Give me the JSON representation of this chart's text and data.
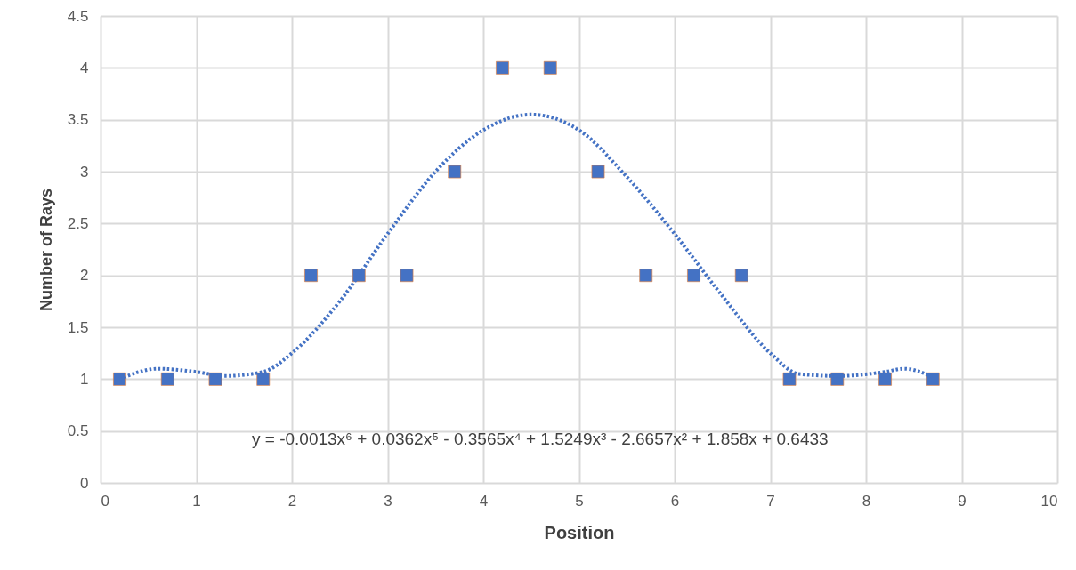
{
  "chart_data": {
    "type": "scatter",
    "xlabel": "Position",
    "ylabel": "Number of Rays",
    "xlim": [
      0,
      10
    ],
    "xticks": [
      0,
      1,
      2,
      3,
      4,
      5,
      6,
      7,
      8,
      9,
      10
    ],
    "ylim": [
      0,
      4.5
    ],
    "yticks": [
      0,
      0.5,
      1,
      1.5,
      2,
      2.5,
      3,
      3.5,
      4,
      4.5
    ],
    "grid": true,
    "marker": "square",
    "annotations": [
      "y = -0.0013x⁶ + 0.0362x⁵ - 0.3565x⁴ + 1.5249x³ - 2.6657x² + 1.858x + 0.6433"
    ],
    "series": [
      {
        "color": "#4472c4",
        "x": [
          0.2,
          0.7,
          1.2,
          1.7,
          2.2,
          2.7,
          3.2,
          3.7,
          4.2,
          4.7,
          5.2,
          5.7,
          6.2,
          6.7,
          7.2,
          7.7,
          8.2,
          8.7
        ],
        "values": [
          1,
          1,
          1,
          1,
          2,
          2,
          2,
          3,
          4,
          4,
          3,
          2,
          2,
          2,
          1,
          1,
          1,
          1
        ]
      },
      {
        "type": "line",
        "color": "#4472c4",
        "marker": "none",
        "line_style": "dotted",
        "x": [
          0.2,
          0.6,
          1.0,
          1.3,
          1.7,
          2.0,
          2.5,
          3.0,
          3.5,
          4.0,
          4.5,
          5.0,
          5.5,
          6.0,
          6.5,
          7.0,
          7.3,
          7.7,
          8.2,
          8.4,
          8.7
        ],
        "values": [
          1.0,
          1.1,
          1.07,
          1.03,
          1.07,
          1.25,
          1.75,
          2.4,
          3.0,
          3.4,
          3.55,
          3.4,
          2.95,
          2.4,
          1.8,
          1.25,
          1.05,
          1.03,
          1.07,
          1.1,
          1.02
        ]
      }
    ]
  }
}
